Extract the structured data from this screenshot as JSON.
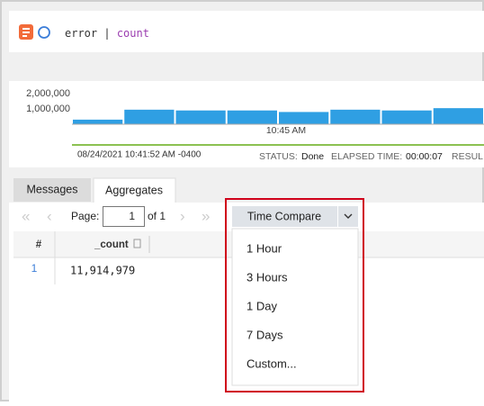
{
  "search": {
    "query_keyword": "error",
    "query_pipe": "|",
    "query_operator": "count"
  },
  "chart_data": {
    "type": "bar",
    "categories": [
      null,
      null,
      null,
      null,
      null,
      null,
      null,
      null
    ],
    "values": [
      300000,
      950000,
      900000,
      900000,
      800000,
      950000,
      900000,
      1050000
    ],
    "color": "#2f9fe3",
    "ylim": [
      0,
      2000000
    ],
    "yticks": [
      {
        "value": 1000000,
        "label": "1,000,000"
      },
      {
        "value": 2000000,
        "label": "2,000,000"
      }
    ],
    "annotation": "10:45 AM"
  },
  "status_bar": {
    "timestamp": "08/24/2021 10:41:52 AM -0400",
    "status_label": "STATUS:",
    "status": "Done",
    "elapsed_label": "ELAPSED TIME:",
    "elapsed": "00:00:07",
    "results_label": "RESUL"
  },
  "tabs": [
    "Messages",
    "Aggregates"
  ],
  "pagination": {
    "page_label": "Page:",
    "page": "1",
    "of": "of 1"
  },
  "time_compare": {
    "button": "Time Compare",
    "options": [
      "1 Hour",
      "3 Hours",
      "1 Day",
      "7 Days",
      "Custom..."
    ]
  },
  "table": {
    "headers": [
      "#",
      "_count"
    ],
    "rows": [
      [
        "1",
        "11,914,979"
      ]
    ]
  }
}
